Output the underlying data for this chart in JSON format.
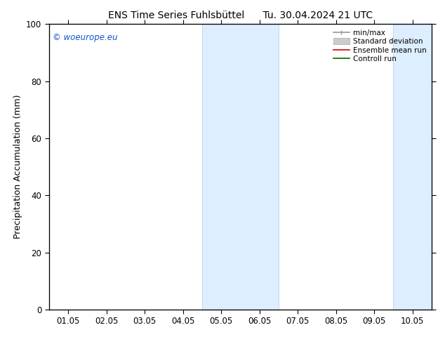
{
  "title": "ENS Time Series Fuhlsbüttel      Tu. 30.04.2024 21 UTC",
  "ylabel": "Precipitation Accumulation (mm)",
  "ylim": [
    0,
    100
  ],
  "yticks": [
    0,
    20,
    40,
    60,
    80,
    100
  ],
  "xtick_labels": [
    "01.05",
    "02.05",
    "03.05",
    "04.05",
    "05.05",
    "06.05",
    "07.05",
    "08.05",
    "09.05",
    "10.05"
  ],
  "x_values": [
    0,
    1,
    2,
    3,
    4,
    5,
    6,
    7,
    8,
    9
  ],
  "xlim": [
    -0.5,
    9.5
  ],
  "shaded_regions": [
    {
      "x_start": 3.5,
      "x_end": 5.5
    },
    {
      "x_start": 8.5,
      "x_end": 9.5
    }
  ],
  "shaded_color": "#ddeeff",
  "shaded_edge_color": "#aaccee",
  "watermark": "© woeurope.eu",
  "watermark_color": "#1155cc",
  "legend_items": [
    {
      "label": "min/max",
      "color": "#999999",
      "lw": 1.2
    },
    {
      "label": "Standard deviation",
      "color": "#cccccc",
      "lw": 5
    },
    {
      "label": "Ensemble mean run",
      "color": "#dd0000",
      "lw": 1.2
    },
    {
      "label": "Controll run",
      "color": "#006600",
      "lw": 1.2
    }
  ],
  "bg_color": "#ffffff",
  "title_fontsize": 10,
  "ylabel_fontsize": 9,
  "tick_fontsize": 8.5,
  "watermark_fontsize": 8.5,
  "legend_fontsize": 7.5
}
